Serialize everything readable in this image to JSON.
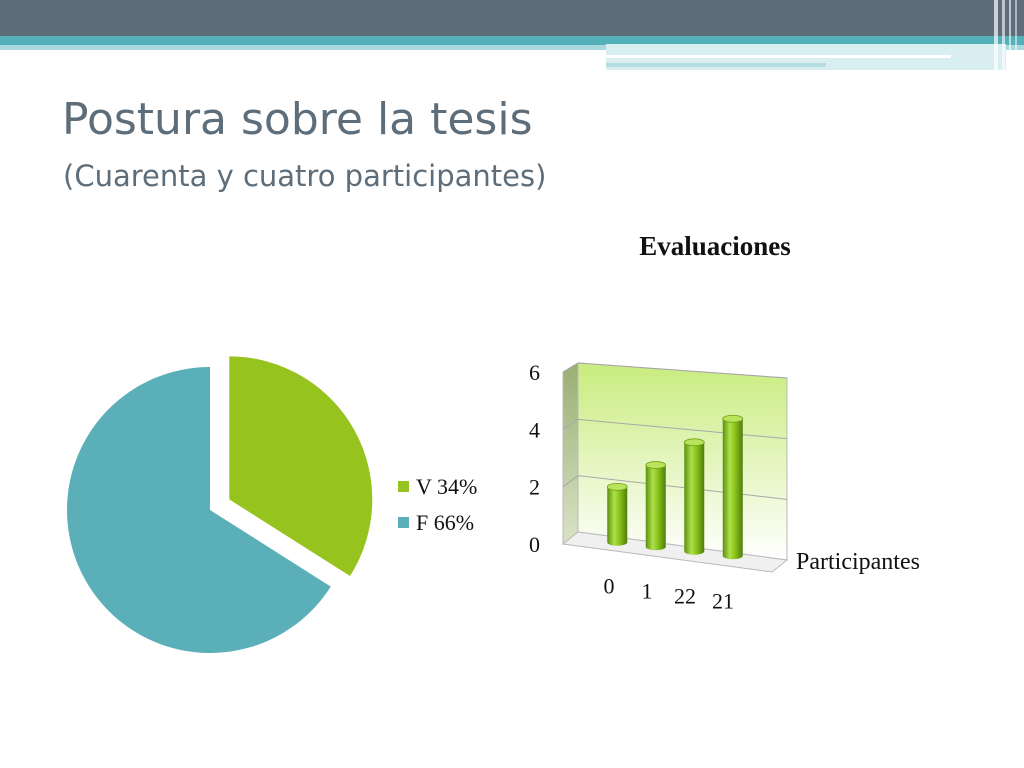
{
  "slide": {
    "title": "Postura sobre la tesis",
    "subtitle": "(Cuarenta y cuatro participantes)"
  },
  "colors": {
    "title_text": "#5d6d7a",
    "header_bar": "#5d6d7a",
    "accent_teal": "#54b0b8",
    "pie_v": "#97c31f",
    "pie_f": "#5aafb8",
    "bar_green": "#8cc51c"
  },
  "chart_data": [
    {
      "type": "pie",
      "title": "",
      "exploded_slice": "V 34%",
      "legend_position": "right",
      "slices": [
        {
          "label": "V 34%",
          "value": 34,
          "color": "#97c31f"
        },
        {
          "label": "F 66%",
          "value": 66,
          "color": "#5aafb8"
        }
      ]
    },
    {
      "type": "bar",
      "style": "3d-cylinder",
      "title": "Evaluaciones",
      "categories": [
        "0",
        "1",
        "22",
        "21"
      ],
      "series": [
        {
          "name": "Participantes",
          "values": [
            2,
            2.9,
            3.8,
            4.7
          ]
        }
      ],
      "ylim": [
        0,
        6
      ],
      "yticks": [
        0,
        2,
        4,
        6
      ],
      "grid": true,
      "legend_position": "right"
    }
  ]
}
